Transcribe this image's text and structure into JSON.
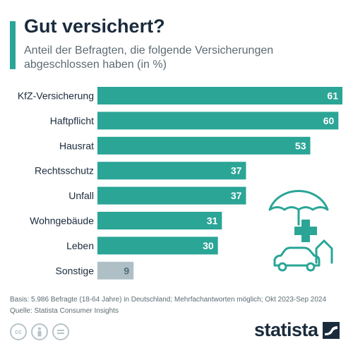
{
  "header": {
    "title": "Gut versichert?",
    "subtitle": "Anteil der Befragten, die folgende Versicherungen abgeschlossen haben (in %)"
  },
  "chart_data": {
    "type": "bar",
    "orientation": "horizontal",
    "categories": [
      "KfZ-Versicherung",
      "Haftpflicht",
      "Hausrat",
      "Rechtsschutz",
      "Unfall",
      "Wohngebäude",
      "Leben",
      "Sonstige"
    ],
    "values": [
      61,
      60,
      53,
      37,
      37,
      31,
      30,
      9
    ],
    "xlim": [
      0,
      61
    ],
    "grid": false,
    "legend": "none",
    "colors": {
      "bar": "#2aa596",
      "bar_highlight": "#aebfc6",
      "label_on_bar": "#ffffff",
      "label_off_bar": "#4f6e7a"
    },
    "title": "Gut versichert?",
    "xlabel": "",
    "ylabel": ""
  },
  "footer": {
    "basis": "Basis: 5.986 Befragte (18-64 Jahre) in Deutschland; Mehrfachantworten möglich; Okt 2023-Sep 2024",
    "source": "Quelle: Statista Consumer Insights"
  },
  "license_icons": [
    "cc-icon",
    "by-icon",
    "nd-icon"
  ],
  "logo": {
    "text": "statista"
  },
  "illustration": {
    "icons": [
      "umbrella-icon",
      "medical-cross-icon",
      "car-icon",
      "house-icon"
    ],
    "color": "#2aa596"
  }
}
